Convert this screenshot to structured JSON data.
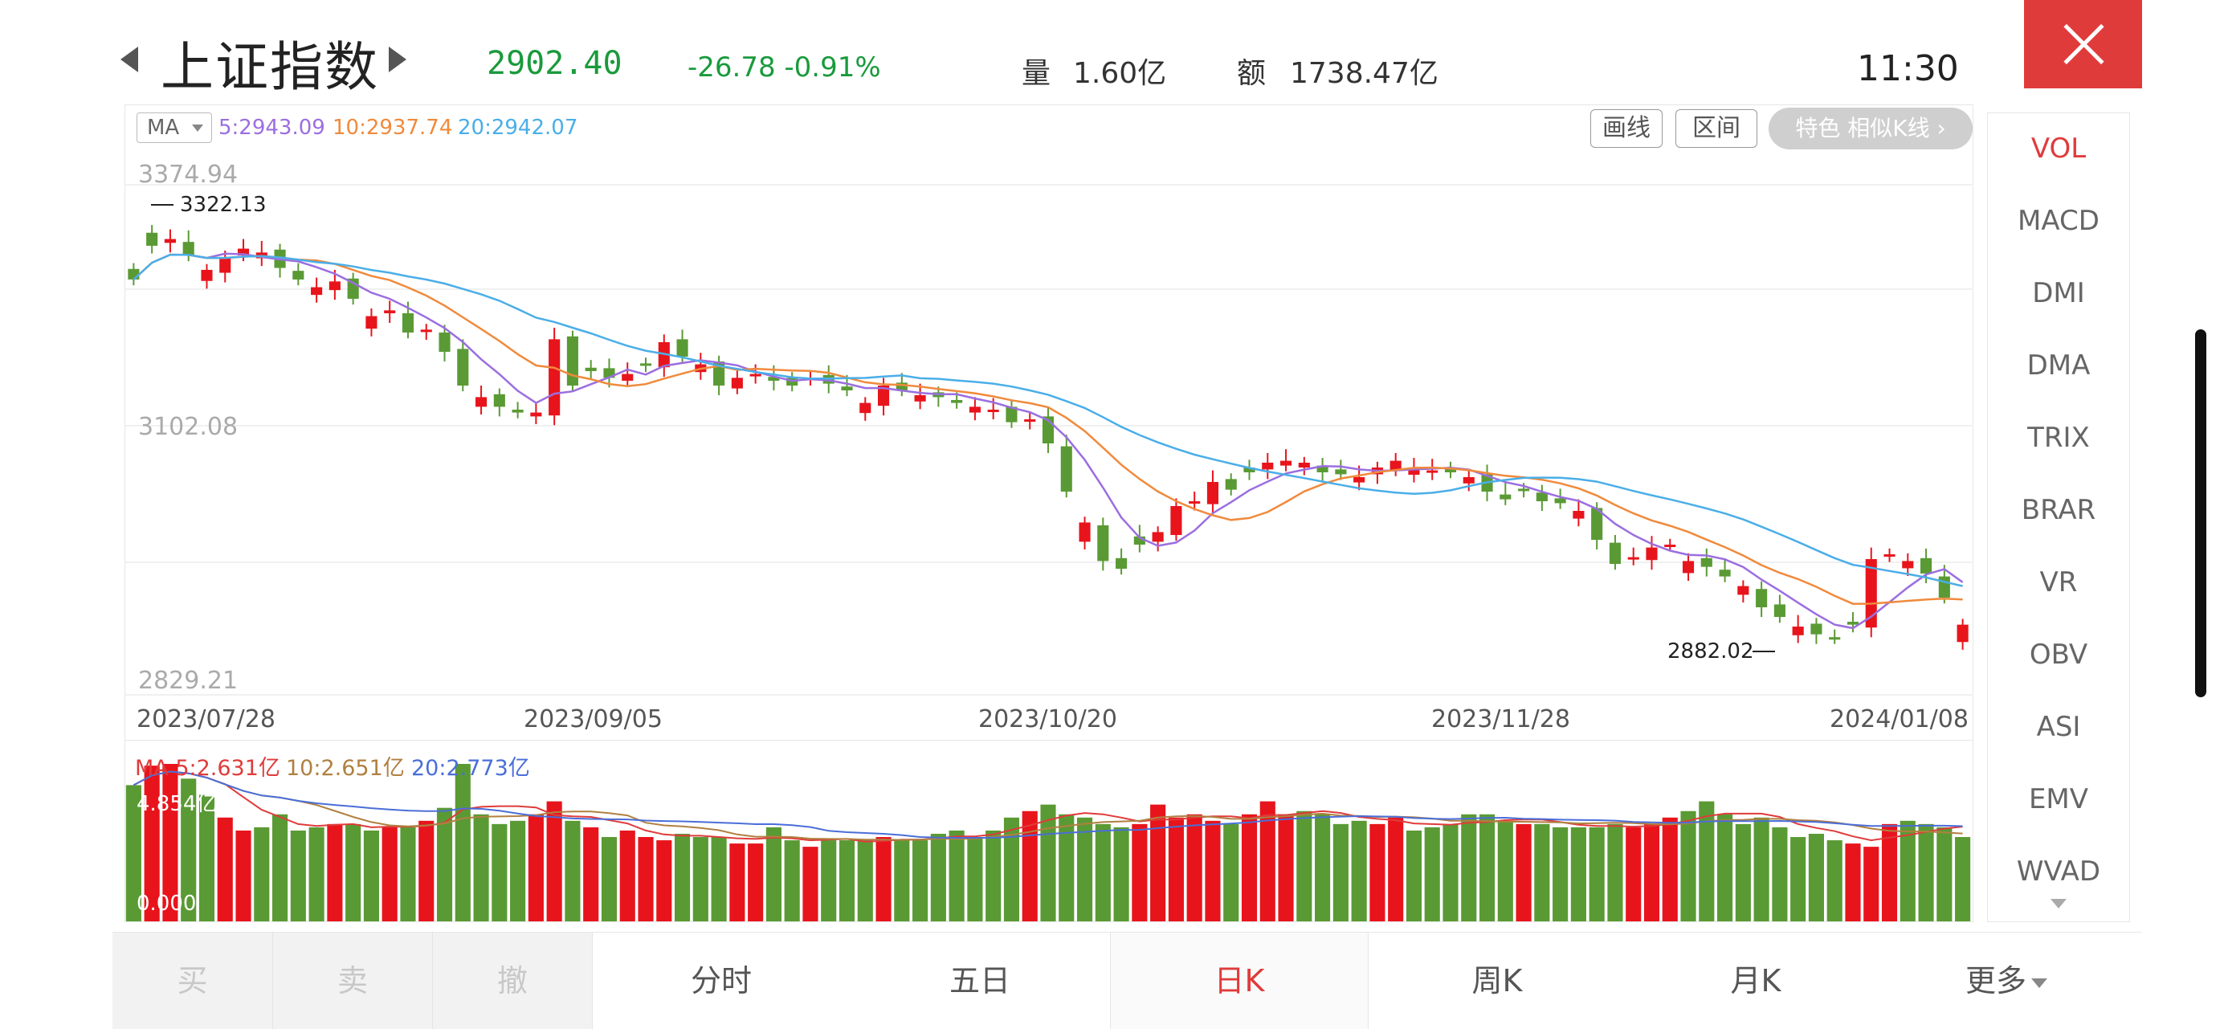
{
  "header": {
    "title": "上证指数",
    "price": "2902.40",
    "change": "-26.78  -0.91%",
    "volume_label": "量",
    "volume_value": "1.60亿",
    "amount_label": "额",
    "amount_value": "1738.47亿",
    "time": "11:30"
  },
  "chart_header": {
    "ma_select": "MA",
    "ma5": "5:2943.09",
    "ma10": "10:2937.74",
    "ma20": "20:2942.07",
    "draw_line": "画线",
    "range": "区间",
    "feature": "特色  相似K线 ›"
  },
  "main_chart": {
    "y_labels": [
      "3374.94",
      "3102.08",
      "2829.21"
    ],
    "high_label": "3322.13",
    "low_label": "2882.02"
  },
  "x_labels": [
    "2023/07/28",
    "2023/09/05",
    "2023/10/20",
    "2023/11/28",
    "2024/01/08"
  ],
  "volume_header": {
    "ma5": "MA 5:2.631亿",
    "ma10": "10:2.651亿",
    "ma20": "20:2.773亿",
    "top": "4.854亿",
    "bottom": "0.000"
  },
  "indicators": [
    "VOL",
    "MACD",
    "DMI",
    "DMA",
    "TRIX",
    "BRAR",
    "VR",
    "OBV",
    "ASI",
    "EMV",
    "WVAD"
  ],
  "active_indicator": "VOL",
  "bottom_bar": {
    "buy": "买",
    "sell": "卖",
    "cancel": "撤",
    "intraday": "分时",
    "five_day": "五日",
    "daily_k": "日K",
    "weekly_k": "周K",
    "monthly_k": "月K",
    "more": "更多"
  },
  "colors": {
    "up": "#e8141c",
    "down": "#5a9a34",
    "accent": "#e03b3b",
    "price_down": "#1a9a3c",
    "ma5": "#9b6ee0",
    "ma10": "#f08a3c",
    "ma20": "#4aaee8"
  },
  "chart_data": {
    "type": "candlestick",
    "y_range": [
      2829.21,
      3374.94
    ],
    "x_ticks": [
      "2023/07/28",
      "2023/09/05",
      "2023/10/20",
      "2023/11/28",
      "2024/01/08"
    ],
    "high": 3322.13,
    "low": 2882.02,
    "closes": [
      3260,
      3295,
      3302,
      3285,
      3270,
      3282,
      3292,
      3288,
      3272,
      3260,
      3252,
      3258,
      3240,
      3222,
      3228,
      3205,
      3208,
      3185,
      3150,
      3138,
      3128,
      3122,
      3122,
      3198,
      3150,
      3165,
      3158,
      3162,
      3172,
      3195,
      3180,
      3172,
      3150,
      3158,
      3162,
      3155,
      3150,
      3158,
      3152,
      3145,
      3132,
      3150,
      3145,
      3140,
      3138,
      3132,
      3128,
      3125,
      3112,
      3115,
      3090,
      3040,
      3008,
      2968,
      2960,
      2985,
      2998,
      3025,
      3030,
      3050,
      3042,
      3060,
      3070,
      3072,
      3070,
      3060,
      3058,
      3055,
      3065,
      3072,
      3065,
      3062,
      3060,
      3055,
      3040,
      3032,
      3042,
      3030,
      3028,
      3020,
      2990,
      2965,
      2972,
      2982,
      2985,
      2968,
      2962,
      2952,
      2942,
      2920,
      2910,
      2900,
      2892,
      2888,
      2902,
      2970,
      2975,
      2968,
      2955,
      2930,
      2902
    ],
    "volumes": [
      4.2,
      4.8,
      4.854,
      4.4,
      3.9,
      3.2,
      2.8,
      2.9,
      3.3,
      2.8,
      2.9,
      3.0,
      3.0,
      2.8,
      2.9,
      2.9,
      3.1,
      3.5,
      4.854,
      3.3,
      3.0,
      3.1,
      3.3,
      3.7,
      3.1,
      2.9,
      2.6,
      2.8,
      2.6,
      2.5,
      2.7,
      2.6,
      2.6,
      2.4,
      2.4,
      2.9,
      2.5,
      2.3,
      2.5,
      2.5,
      2.5,
      2.6,
      2.5,
      2.5,
      2.7,
      2.8,
      2.6,
      2.8,
      3.2,
      3.4,
      3.6,
      3.3,
      3.2,
      3.0,
      2.9,
      3.0,
      3.6,
      3.2,
      3.3,
      3.1,
      3.0,
      3.3,
      3.7,
      3.3,
      3.4,
      3.3,
      3.0,
      3.1,
      3.0,
      3.2,
      2.8,
      2.9,
      3.0,
      3.3,
      3.3,
      3.1,
      3.0,
      3.0,
      2.9,
      2.9,
      2.9,
      3.0,
      2.9,
      3.0,
      3.2,
      3.4,
      3.7,
      3.3,
      3.0,
      3.2,
      2.9,
      2.6,
      2.7,
      2.5,
      2.4,
      2.3,
      3.0,
      3.1,
      3.0,
      2.9,
      2.6
    ]
  }
}
